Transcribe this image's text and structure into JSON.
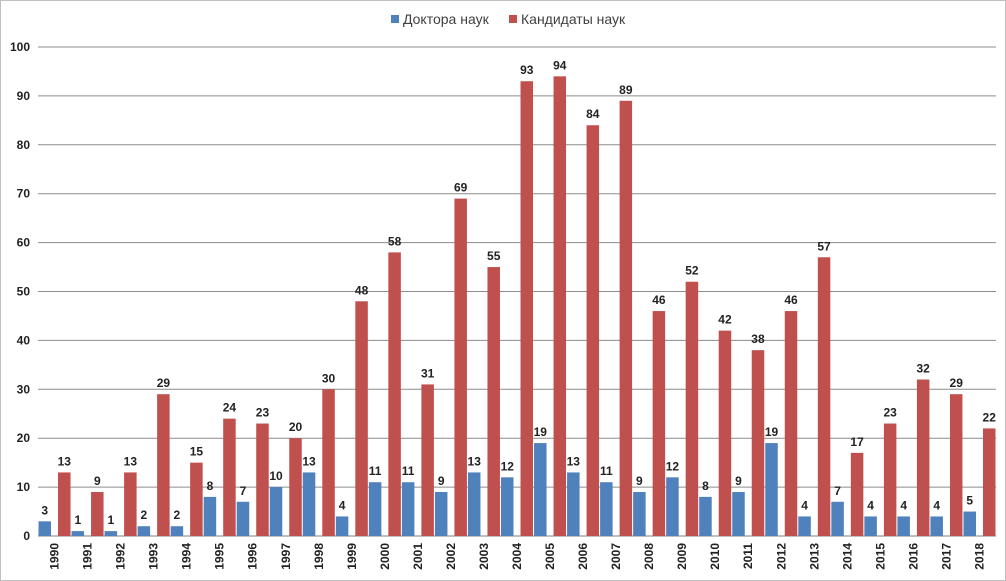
{
  "chart_data": {
    "type": "bar",
    "title": "",
    "xlabel": "",
    "ylabel": "",
    "ylim": [
      0,
      100
    ],
    "yticks": [
      0,
      10,
      20,
      30,
      40,
      50,
      60,
      70,
      80,
      90,
      100
    ],
    "grid": true,
    "legend_position": "top-center",
    "categories": [
      "1990",
      "1991",
      "1992",
      "1993",
      "1994",
      "1995",
      "1996",
      "1997",
      "1998",
      "1999",
      "2000",
      "2001",
      "2002",
      "2003",
      "2004",
      "2005",
      "2006",
      "2007",
      "2008",
      "2009",
      "2010",
      "2011",
      "2012",
      "2013",
      "2014",
      "2015",
      "2016",
      "2017",
      "2018"
    ],
    "series": [
      {
        "name": "Доктора наук",
        "color": "#4f81bd",
        "values": [
          3,
          1,
          1,
          2,
          2,
          8,
          7,
          10,
          13,
          4,
          11,
          11,
          9,
          13,
          12,
          19,
          13,
          11,
          9,
          12,
          8,
          9,
          19,
          4,
          7,
          4,
          4,
          4,
          5
        ]
      },
      {
        "name": "Кандидаты наук",
        "color": "#c0504d",
        "values": [
          13,
          9,
          13,
          29,
          15,
          24,
          23,
          20,
          30,
          48,
          58,
          31,
          69,
          55,
          93,
          94,
          84,
          89,
          46,
          52,
          42,
          38,
          46,
          57,
          17,
          23,
          32,
          29,
          22
        ]
      }
    ]
  }
}
